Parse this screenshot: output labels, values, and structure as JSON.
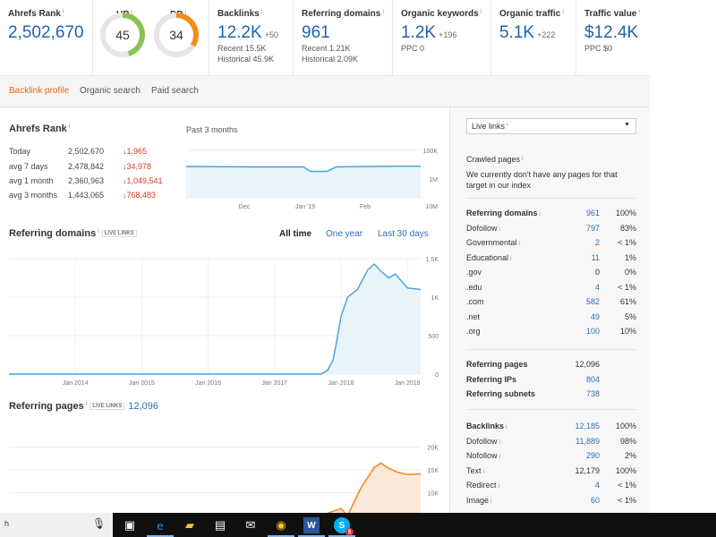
{
  "metrics": [
    {
      "title": "Ahrefs Rank",
      "value": "2,502,670",
      "delta": "",
      "sub": []
    },
    {
      "title": "UR",
      "value": "45",
      "delta": "",
      "sub": []
    },
    {
      "title": "DR",
      "value": "34",
      "delta": "",
      "sub": []
    },
    {
      "title": "Backlinks",
      "value": "12.2K",
      "delta": "+50",
      "sub": [
        "Recent 15.5K",
        "Historical 45.9K"
      ]
    },
    {
      "title": "Referring domains",
      "value": "961",
      "delta": "",
      "sub": [
        "Recent 1.21K",
        "Historical 2.09K"
      ]
    },
    {
      "title": "Organic keywords",
      "value": "1.2K",
      "delta": "+196",
      "sub": [
        "PPC 0"
      ]
    },
    {
      "title": "Organic traffic",
      "value": "5.1K",
      "delta": "+222",
      "sub": []
    },
    {
      "title": "Traffic value",
      "value": "$12.4K",
      "delta": "",
      "sub": [
        "PPC $0"
      ]
    }
  ],
  "info_mark": "i",
  "gauges": {
    "ur": 0.45,
    "dr": 0.34,
    "ur_color": "#8cc152",
    "dr_color": "#f28c1f"
  },
  "tabs": [
    "Backlink profile",
    "Organic search",
    "Paid search"
  ],
  "ahrefs_rank": {
    "title": "Ahrefs Rank",
    "period": "Past 3 months",
    "rows": [
      {
        "label": "Today",
        "value": "2,502,670",
        "change": "↓1,965"
      },
      {
        "label": "avg 7 days",
        "value": "2,478,842",
        "change": "↓34,978"
      },
      {
        "label": "avg 1 month",
        "value": "2,360,963",
        "change": "↓1,049,541"
      },
      {
        "label": "avg 3 months",
        "value": "1,443,065",
        "change": "↓768,483"
      }
    ]
  },
  "referring_domains": {
    "title": "Referring domains",
    "live": "LIVE LINKS",
    "ranges": [
      "All time",
      "One year",
      "Last 30 days"
    ]
  },
  "referring_pages": {
    "title": "Referring pages",
    "live": "LIVE LINKS",
    "value": "12,096"
  },
  "chart_data": [
    {
      "type": "line",
      "title": "Ahrefs Rank",
      "x": [
        "Dec",
        "Jan '19",
        "Feb"
      ],
      "y_ticks": [
        "100K",
        "1M",
        "10M"
      ],
      "y_log": true,
      "x_range": [
        0,
        1
      ],
      "y_range": [
        100000,
        10000000
      ],
      "points": [
        [
          0,
          2100000
        ],
        [
          0.28,
          2000000
        ],
        [
          0.3,
          2000000
        ],
        [
          0.5,
          2000000
        ],
        [
          0.53,
          1300000
        ],
        [
          0.6,
          1300000
        ],
        [
          0.64,
          2000000
        ],
        [
          0.7,
          2050000
        ],
        [
          0.8,
          2100000
        ],
        [
          0.9,
          2150000
        ],
        [
          0.96,
          2150000
        ],
        [
          1,
          2150000
        ]
      ],
      "stroke": "#3ea0e0",
      "fill": "#e9f4fb"
    },
    {
      "type": "area",
      "title": "Referring domains",
      "x": [
        "Jan 2014",
        "Jan 2015",
        "Jan 2016",
        "Jan 2017",
        "Jan 2018",
        "Jan 2019"
      ],
      "y_ticks": [
        "1.5K",
        "1K",
        "500",
        "0"
      ],
      "x_range": [
        2013,
        2019.2
      ],
      "y_range": [
        0,
        1500
      ],
      "points": [
        [
          2013,
          0
        ],
        [
          2014,
          0
        ],
        [
          2015,
          0
        ],
        [
          2016,
          0
        ],
        [
          2017,
          0
        ],
        [
          2017.7,
          0
        ],
        [
          2017.8,
          50
        ],
        [
          2017.88,
          180
        ],
        [
          2017.93,
          400
        ],
        [
          2018,
          750
        ],
        [
          2018.1,
          1000
        ],
        [
          2018.25,
          1100
        ],
        [
          2018.4,
          1350
        ],
        [
          2018.5,
          1430
        ],
        [
          2018.6,
          1340
        ],
        [
          2018.72,
          1250
        ],
        [
          2018.82,
          1300
        ],
        [
          2018.9,
          1220
        ],
        [
          2019,
          1120
        ],
        [
          2019.2,
          1100
        ]
      ],
      "stroke": "#3ea0e0",
      "fill": "#e9f4fb"
    },
    {
      "type": "area",
      "title": "Referring pages",
      "x": [],
      "y_ticks": [
        "20K",
        "15K",
        "10K"
      ],
      "x_range": [
        2013,
        2019.2
      ],
      "y_range": [
        5000,
        20000
      ],
      "points": [
        [
          2017.7,
          5000
        ],
        [
          2018,
          6500
        ],
        [
          2018.1,
          5000
        ],
        [
          2018.3,
          11000
        ],
        [
          2018.5,
          15500
        ],
        [
          2018.6,
          16500
        ],
        [
          2018.7,
          15500
        ],
        [
          2018.85,
          14500
        ],
        [
          2019,
          14000
        ],
        [
          2019.2,
          14100
        ]
      ],
      "stroke": "#f28c1f",
      "fill": "#fde9da"
    }
  ],
  "sidebar": {
    "dropdown": "Live links",
    "crawled_title": "Crawled pages",
    "crawled_text": "We currently don't have any pages for that target in our index",
    "domains": [
      {
        "label": "Referring domains",
        "value": "961",
        "pct": "100%",
        "bold": true,
        "info": true
      },
      {
        "label": "Dofollow",
        "value": "797",
        "pct": "83%",
        "info": true
      },
      {
        "label": "Governmental",
        "value": "2",
        "pct": "< 1%",
        "info": true
      },
      {
        "label": "Educational",
        "value": "11",
        "pct": "1%",
        "info": true
      },
      {
        "label": ".gov",
        "value": "0",
        "pct": "0%"
      },
      {
        "label": ".edu",
        "value": "4",
        "pct": "< 1%"
      },
      {
        "label": ".com",
        "value": "582",
        "pct": "61%"
      },
      {
        "label": ".net",
        "value": "49",
        "pct": "5%"
      },
      {
        "label": ".org",
        "value": "100",
        "pct": "10%"
      }
    ],
    "pages": [
      {
        "label": "Referring pages",
        "value": "12,096",
        "bold": true
      },
      {
        "label": "Referring IPs",
        "value": "804",
        "bold": true,
        "link": true
      },
      {
        "label": "Referring subnets",
        "value": "738",
        "bold": true,
        "link": true
      }
    ],
    "backlinks": [
      {
        "label": "Backlinks",
        "value": "12,185",
        "pct": "100%",
        "bold": true,
        "info": true
      },
      {
        "label": "Dofollow",
        "value": "11,889",
        "pct": "98%",
        "info": true
      },
      {
        "label": "Nofollow",
        "value": "290",
        "pct": "2%",
        "info": true
      },
      {
        "label": "Text",
        "value": "12,179",
        "pct": "100%",
        "info": true
      },
      {
        "label": "Redirect",
        "value": "4",
        "pct": "< 1%",
        "info": true
      },
      {
        "label": "Image",
        "value": "60",
        "pct": "< 1%",
        "info": true
      }
    ]
  },
  "taskbar": {
    "search_text": "h",
    "icons": [
      {
        "name": "task-view-icon",
        "glyph": "▣",
        "color": "#ffffff"
      },
      {
        "name": "edge-icon",
        "glyph": "e",
        "color": "#1f8fe6"
      },
      {
        "name": "file-explorer-icon",
        "glyph": "▰",
        "color": "#f3c33b"
      },
      {
        "name": "store-icon",
        "glyph": "▤",
        "color": "#ffffff"
      },
      {
        "name": "mail-icon",
        "glyph": "✉",
        "color": "#ffffff"
      },
      {
        "name": "chrome-icon",
        "glyph": "◉",
        "color": "#f2c12e"
      },
      {
        "name": "word-icon",
        "glyph": "W",
        "color": "#2b579a"
      },
      {
        "name": "skype-icon",
        "glyph": "S",
        "color": "#00aff0"
      }
    ],
    "skype_badge": "5"
  }
}
